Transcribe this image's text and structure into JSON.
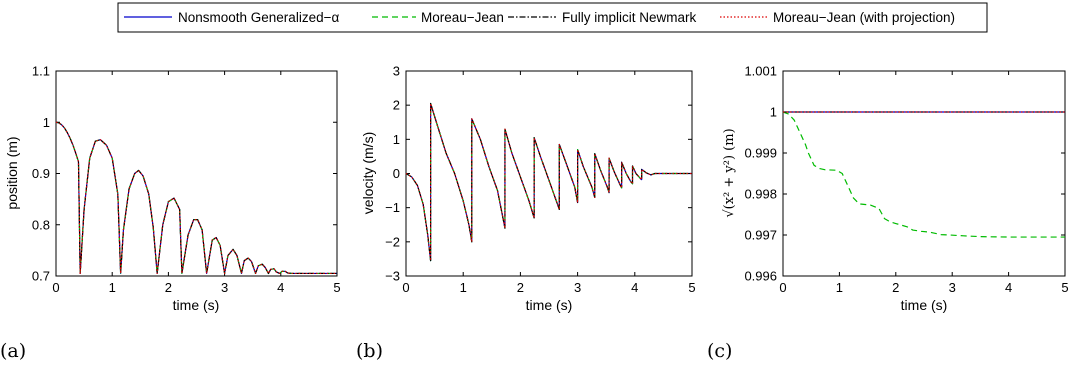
{
  "legend": {
    "entries": [
      {
        "label": "Nonsmooth Generalized−α",
        "color": "#0000cc",
        "dash": "solid"
      },
      {
        "label": "Moreau−Jean",
        "color": "#00bb00",
        "dash": "dashed"
      },
      {
        "label": "Fully implicit Newmark",
        "color": "#000000",
        "dash": "dashdot"
      },
      {
        "label": "Moreau−Jean (with projection)",
        "color": "#dd0000",
        "dash": "dotted"
      }
    ]
  },
  "panels": [
    {
      "label": "(a)"
    },
    {
      "label": "(b)"
    },
    {
      "label": "(c)"
    }
  ],
  "chart_data": [
    {
      "type": "line",
      "panel_label": "(a)",
      "xlabel": "time (s)",
      "ylabel": "position (m)",
      "xlim": [
        0,
        5
      ],
      "ylim": [
        0.7,
        1.1
      ],
      "xticks": [
        "0",
        "1",
        "2",
        "3",
        "4",
        "5"
      ],
      "yticks": [
        "0.7",
        "0.8",
        "0.9",
        "1",
        "1.1"
      ],
      "grid": false,
      "series": [
        {
          "name": "Nonsmooth Generalized−α",
          "x": [
            0,
            0.05,
            0.1,
            0.15,
            0.2,
            0.25,
            0.3,
            0.35,
            0.4,
            0.43,
            0.5,
            0.6,
            0.7,
            0.79,
            0.9,
            1.0,
            1.1,
            1.15,
            1.2,
            1.3,
            1.4,
            1.47,
            1.55,
            1.65,
            1.73,
            1.8,
            1.9,
            2.0,
            2.1,
            2.2,
            2.24,
            2.35,
            2.45,
            2.52,
            2.6,
            2.68,
            2.78,
            2.85,
            2.92,
            3.0,
            3.06,
            3.15,
            3.22,
            3.3,
            3.35,
            3.42,
            3.48,
            3.55,
            3.6,
            3.67,
            3.72,
            3.78,
            3.82,
            3.88,
            3.92,
            3.98,
            4.02,
            4.08,
            4.12,
            4.2,
            4.3,
            5.0
          ],
          "y": [
            1.0,
            0.999,
            0.995,
            0.989,
            0.98,
            0.969,
            0.956,
            0.94,
            0.923,
            0.705,
            0.83,
            0.93,
            0.963,
            0.966,
            0.955,
            0.93,
            0.86,
            0.705,
            0.79,
            0.87,
            0.9,
            0.906,
            0.895,
            0.86,
            0.795,
            0.705,
            0.8,
            0.845,
            0.852,
            0.83,
            0.705,
            0.78,
            0.81,
            0.81,
            0.79,
            0.705,
            0.77,
            0.775,
            0.76,
            0.705,
            0.74,
            0.752,
            0.74,
            0.705,
            0.73,
            0.735,
            0.728,
            0.705,
            0.72,
            0.723,
            0.717,
            0.705,
            0.713,
            0.714,
            0.708,
            0.705,
            0.709,
            0.709,
            0.706,
            0.705,
            0.705,
            0.705
          ]
        },
        {
          "name": "Moreau−Jean",
          "same_as": "Nonsmooth Generalized−α"
        },
        {
          "name": "Fully implicit Newmark",
          "same_as": "Nonsmooth Generalized−α"
        },
        {
          "name": "Moreau−Jean (with projection)",
          "same_as": "Nonsmooth Generalized−α"
        }
      ]
    },
    {
      "type": "line",
      "panel_label": "(b)",
      "xlabel": "time (s)",
      "ylabel": "velocity (m/s)",
      "xlim": [
        0,
        5
      ],
      "ylim": [
        -3,
        3
      ],
      "xticks": [
        "0",
        "1",
        "2",
        "3",
        "4",
        "5"
      ],
      "yticks": [
        "−3",
        "−2",
        "−1",
        "0",
        "1",
        "2",
        "3"
      ],
      "grid": false,
      "series": [
        {
          "name": "Nonsmooth Generalized−α",
          "x": [
            0,
            0.1,
            0.2,
            0.3,
            0.38,
            0.43,
            0.43,
            0.55,
            0.7,
            0.85,
            1.0,
            1.1,
            1.15,
            1.15,
            1.3,
            1.45,
            1.6,
            1.73,
            1.73,
            1.85,
            2.0,
            2.15,
            2.24,
            2.24,
            2.35,
            2.5,
            2.68,
            2.68,
            2.8,
            2.95,
            3.0,
            3.0,
            3.1,
            3.25,
            3.3,
            3.3,
            3.4,
            3.52,
            3.55,
            3.55,
            3.64,
            3.74,
            3.77,
            3.77,
            3.85,
            3.93,
            3.96,
            3.96,
            4.02,
            4.1,
            4.12,
            4.12,
            4.2,
            4.28,
            4.35,
            4.5,
            5.0
          ],
          "y": [
            0,
            -0.1,
            -0.35,
            -0.9,
            -1.8,
            -2.55,
            2.05,
            1.4,
            0.6,
            0.0,
            -0.8,
            -1.5,
            -2.0,
            1.6,
            1.0,
            0.2,
            -0.5,
            -1.6,
            1.3,
            0.6,
            -0.1,
            -0.8,
            -1.3,
            1.05,
            0.5,
            -0.2,
            -1.05,
            0.85,
            0.3,
            -0.4,
            -0.85,
            0.7,
            0.2,
            -0.4,
            -0.7,
            0.58,
            0.1,
            -0.4,
            -0.56,
            0.45,
            0.05,
            -0.32,
            -0.42,
            0.33,
            0.0,
            -0.24,
            -0.3,
            0.22,
            0.0,
            -0.15,
            -0.18,
            0.12,
            0.02,
            -0.04,
            0.0,
            0.0,
            0.0
          ]
        },
        {
          "name": "Moreau−Jean",
          "same_as": "Nonsmooth Generalized−α"
        },
        {
          "name": "Fully implicit Newmark",
          "same_as": "Nonsmooth Generalized−α"
        },
        {
          "name": "Moreau−Jean (with projection)",
          "same_as": "Nonsmooth Generalized−α"
        }
      ]
    },
    {
      "type": "line",
      "panel_label": "(c)",
      "xlabel": "time (s)",
      "ylabel": "√(x² + y²) (m)",
      "xlim": [
        0,
        5
      ],
      "ylim": [
        0.996,
        1.001
      ],
      "xticks": [
        "0",
        "1",
        "2",
        "3",
        "4",
        "5"
      ],
      "yticks": [
        "0.996",
        "0.997",
        "0.998",
        "0.999",
        "1",
        "1.001"
      ],
      "grid": false,
      "series": [
        {
          "name": "Nonsmooth Generalized−α",
          "x": [
            0,
            5
          ],
          "y": [
            1.0,
            1.0
          ]
        },
        {
          "name": "Moreau−Jean",
          "x": [
            0,
            0.1,
            0.2,
            0.3,
            0.4,
            0.45,
            0.55,
            0.65,
            0.75,
            0.95,
            1.05,
            1.15,
            1.25,
            1.35,
            1.55,
            1.7,
            1.8,
            1.9,
            2.0,
            2.2,
            2.3,
            2.45,
            2.6,
            2.8,
            2.95,
            3.2,
            3.5,
            4.0,
            4.5,
            5.0
          ],
          "y": [
            1.0,
            0.99995,
            0.9998,
            0.9995,
            0.9992,
            0.999,
            0.9987,
            0.99862,
            0.99859,
            0.99858,
            0.9985,
            0.9982,
            0.9979,
            0.99776,
            0.99773,
            0.99765,
            0.9974,
            0.99732,
            0.99728,
            0.9972,
            0.99712,
            0.99709,
            0.99707,
            0.99701,
            0.997,
            0.99698,
            0.99696,
            0.99695,
            0.99695,
            0.99695
          ]
        },
        {
          "name": "Fully implicit Newmark",
          "x": [
            0,
            5
          ],
          "y": [
            1.0,
            1.0
          ]
        },
        {
          "name": "Moreau−Jean (with projection)",
          "x": [
            0,
            5
          ],
          "y": [
            1.0,
            1.0
          ]
        }
      ]
    }
  ]
}
